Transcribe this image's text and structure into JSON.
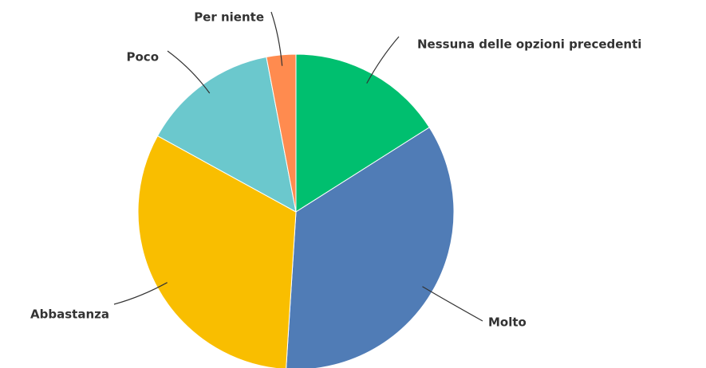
{
  "chart_data": {
    "type": "pie",
    "categories": [
      "Nessuna delle opzioni precedenti",
      "Molto",
      "Abbastanza",
      "Poco",
      "Per niente"
    ],
    "values": [
      16,
      35,
      32,
      14,
      3
    ],
    "colors": [
      "#00bf6f",
      "#507cb6",
      "#f9be00",
      "#6bc8cd",
      "#ff8b4f"
    ]
  }
}
